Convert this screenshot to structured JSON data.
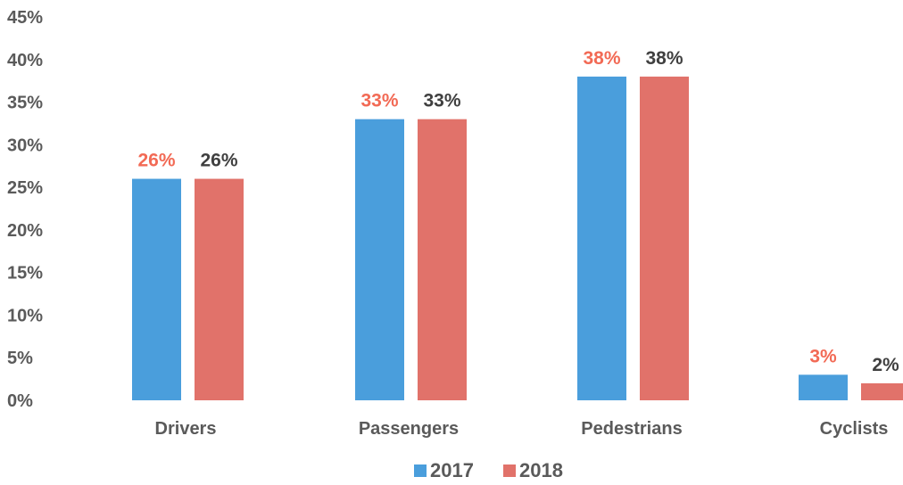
{
  "chart_data": {
    "type": "bar",
    "categories": [
      "Drivers",
      "Passengers",
      "Pedestrians",
      "Cyclists"
    ],
    "series": [
      {
        "name": "2017",
        "values": [
          26,
          33,
          38,
          3
        ],
        "labels": [
          "26%",
          "33%",
          "38%",
          "3%"
        ],
        "color": "#4a9edc",
        "label_color": "#f26a55"
      },
      {
        "name": "2018",
        "values": [
          26,
          33,
          38,
          2
        ],
        "labels": [
          "26%",
          "33%",
          "38%",
          "2%"
        ],
        "color": "#e1726a",
        "label_color": "#404040"
      }
    ],
    "y_ticks": [
      "0%",
      "5%",
      "10%",
      "15%",
      "20%",
      "25%",
      "30%",
      "35%",
      "40%",
      "45%"
    ],
    "ylim": [
      0,
      45
    ],
    "grid": false,
    "legend_position": "bottom"
  }
}
